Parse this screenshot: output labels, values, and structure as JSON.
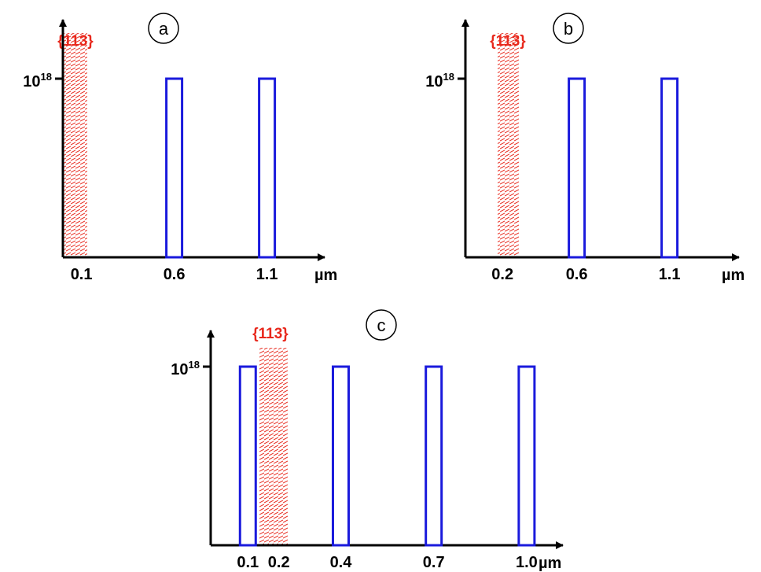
{
  "colors": {
    "axis": "#000000",
    "bar": "#1a1adc",
    "defect": "#e8281c"
  },
  "panels": [
    {
      "letter": "a",
      "y_label": {
        "base": "10",
        "exponent": "18"
      },
      "unit": "µm",
      "defect_region": {
        "label": "{113}",
        "depth": 0.1
      },
      "ticks": [
        "0.1",
        "0.6",
        "1.1"
      ],
      "peaks": [
        0.6,
        1.1
      ]
    },
    {
      "letter": "b",
      "y_label": {
        "base": "10",
        "exponent": "18"
      },
      "unit": "µm",
      "defect_region": {
        "label": "{113}",
        "depth": 0.2
      },
      "ticks": [
        "0.2",
        "0.6",
        "1.1"
      ],
      "peaks": [
        0.6,
        1.1
      ]
    },
    {
      "letter": "c",
      "y_label": {
        "base": "10",
        "exponent": "18"
      },
      "unit": "µm",
      "defect_region": {
        "label": "{113}",
        "depth": 0.2
      },
      "ticks": [
        "0.1",
        "0.2",
        "0.4",
        "0.7",
        "1.0"
      ],
      "peaks": [
        0.1,
        0.4,
        0.7,
        1.0
      ]
    }
  ]
}
